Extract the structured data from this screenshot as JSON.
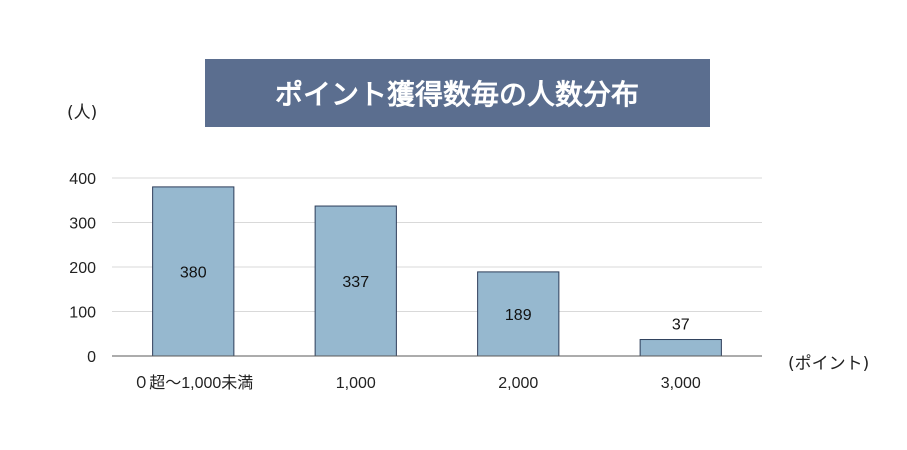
{
  "chart_data": {
    "type": "bar",
    "title": "ポイント獲得数毎の人数分布",
    "ylabel": "(人)",
    "xlabel": "(ポイント)",
    "categories": [
      "０超～1,000未満",
      "1,000",
      "2,000",
      "3,000"
    ],
    "values": [
      380,
      337,
      189,
      37
    ],
    "data_labels": [
      "380",
      "337",
      "189",
      "37"
    ],
    "yticks": [
      "0",
      "100",
      "200",
      "300",
      "400"
    ],
    "ylim": [
      0,
      400
    ],
    "grid": true,
    "colors": {
      "bar_fill": "#96b8cf",
      "bar_stroke": "#2c3d59",
      "title_bg": "#5b6e8f",
      "title_text": "#ffffff",
      "grid": "#d9d9d9",
      "axis": "#595959"
    }
  }
}
